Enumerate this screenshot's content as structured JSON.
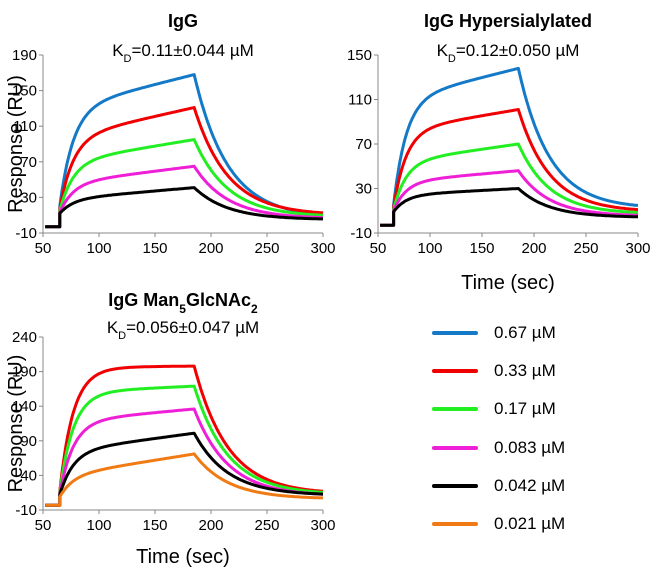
{
  "figure": {
    "colors": {
      "0.67": "#1479C6",
      "0.33": "#F00000",
      "0.17": "#22EE22",
      "0.083": "#EE1FD6",
      "0.042": "#000000",
      "0.021": "#F07A13"
    },
    "legend": [
      {
        "label": "0.67 µM",
        "color": "#1479C6"
      },
      {
        "label": "0.33 µM",
        "color": "#F00000"
      },
      {
        "label": "0.17 µM",
        "color": "#22EE22"
      },
      {
        "label": "0.083 µM",
        "color": "#EE1FD6"
      },
      {
        "label": "0.042 µM",
        "color": "#000000"
      },
      {
        "label": "0.021 µM",
        "color": "#F07A13"
      }
    ],
    "legend_placement": "bottom-right"
  },
  "chart_data": [
    {
      "type": "line",
      "title": "IgG",
      "kd": {
        "prefix": "K",
        "sub": "D",
        "value": "=0.11±0.044 µM"
      },
      "xlabel": "",
      "ylabel": "Response (RU)",
      "xlim": [
        50,
        300
      ],
      "ylim": [
        -10,
        190
      ],
      "xticks": [
        "50",
        "100",
        "150",
        "200",
        "250",
        "300"
      ],
      "yticks": [
        "-10",
        "30",
        "70",
        "110",
        "150",
        "190"
      ],
      "grid": false,
      "injection_start": 65,
      "injection_end": 185,
      "series": [
        {
          "concentration": "0.67",
          "baseline": -3,
          "jump": 23,
          "plateau_start": 130,
          "plateau_end": 168,
          "end_value": 7
        },
        {
          "concentration": "0.33",
          "baseline": -3,
          "jump": 20,
          "plateau_start": 97,
          "plateau_end": 131,
          "end_value": 10
        },
        {
          "concentration": "0.17",
          "baseline": -3,
          "jump": 18,
          "plateau_start": 70,
          "plateau_end": 95,
          "end_value": 8
        },
        {
          "concentration": "0.083",
          "baseline": -3,
          "jump": 16,
          "plateau_start": 46,
          "plateau_end": 65,
          "end_value": 6
        },
        {
          "concentration": "0.042",
          "baseline": -3,
          "jump": 15,
          "plateau_start": 28,
          "plateau_end": 41,
          "end_value": 5
        }
      ]
    },
    {
      "type": "line",
      "title": "IgG Hypersialylated",
      "kd": {
        "prefix": "K",
        "sub": "D",
        "value": "=0.12±0.050 µM"
      },
      "xlabel": "Time (sec)",
      "ylabel": "",
      "xlim": [
        50,
        300
      ],
      "ylim": [
        -10,
        150
      ],
      "xticks": [
        "50",
        "100",
        "150",
        "200",
        "250",
        "300"
      ],
      "yticks": [
        "-10",
        "30",
        "70",
        "110",
        "150"
      ],
      "grid": false,
      "injection_start": 65,
      "injection_end": 185,
      "series": [
        {
          "concentration": "0.67",
          "baseline": -3,
          "jump": 18,
          "plateau_start": 110,
          "plateau_end": 138,
          "end_value": 12
        },
        {
          "concentration": "0.33",
          "baseline": -3,
          "jump": 16,
          "plateau_start": 82,
          "plateau_end": 101,
          "end_value": 9
        },
        {
          "concentration": "0.17",
          "baseline": -3,
          "jump": 14,
          "plateau_start": 54,
          "plateau_end": 70,
          "end_value": 7
        },
        {
          "concentration": "0.083",
          "baseline": -3,
          "jump": 13,
          "plateau_start": 36,
          "plateau_end": 46,
          "end_value": 5
        },
        {
          "concentration": "0.042",
          "baseline": -3,
          "jump": 12,
          "plateau_start": 24,
          "plateau_end": 30,
          "end_value": 4
        }
      ]
    },
    {
      "type": "line",
      "title": "IgG Man",
      "title_sub": [
        "5",
        "2"
      ],
      "title_parts": [
        "IgG Man",
        "5",
        "GlcNAc",
        "2"
      ],
      "kd": {
        "prefix": "K",
        "sub": "D",
        "value": "=0.056±0.047 µM"
      },
      "xlabel": "Time (sec)",
      "ylabel": "Response (RU)",
      "xlim": [
        50,
        300
      ],
      "ylim": [
        -10,
        240
      ],
      "xticks": [
        "50",
        "100",
        "150",
        "200",
        "250",
        "300"
      ],
      "yticks": [
        "-10",
        "40",
        "90",
        "140",
        "190",
        "240"
      ],
      "grid": false,
      "injection_start": 65,
      "injection_end": 185,
      "series": [
        {
          "concentration": "0.33",
          "baseline": -3,
          "jump": 20,
          "plateau_start": 196,
          "plateau_end": 198,
          "end_value": 13
        },
        {
          "concentration": "0.17",
          "baseline": -3,
          "jump": 18,
          "plateau_start": 160,
          "plateau_end": 169,
          "end_value": 12
        },
        {
          "concentration": "0.083",
          "baseline": -3,
          "jump": 16,
          "plateau_start": 118,
          "plateau_end": 136,
          "end_value": 10
        },
        {
          "concentration": "0.042",
          "baseline": -3,
          "jump": 15,
          "plateau_start": 75,
          "plateau_end": 101,
          "end_value": 11
        },
        {
          "concentration": "0.021",
          "baseline": -3,
          "jump": 12,
          "plateau_start": 40,
          "plateau_end": 71,
          "end_value": 6
        }
      ]
    }
  ]
}
